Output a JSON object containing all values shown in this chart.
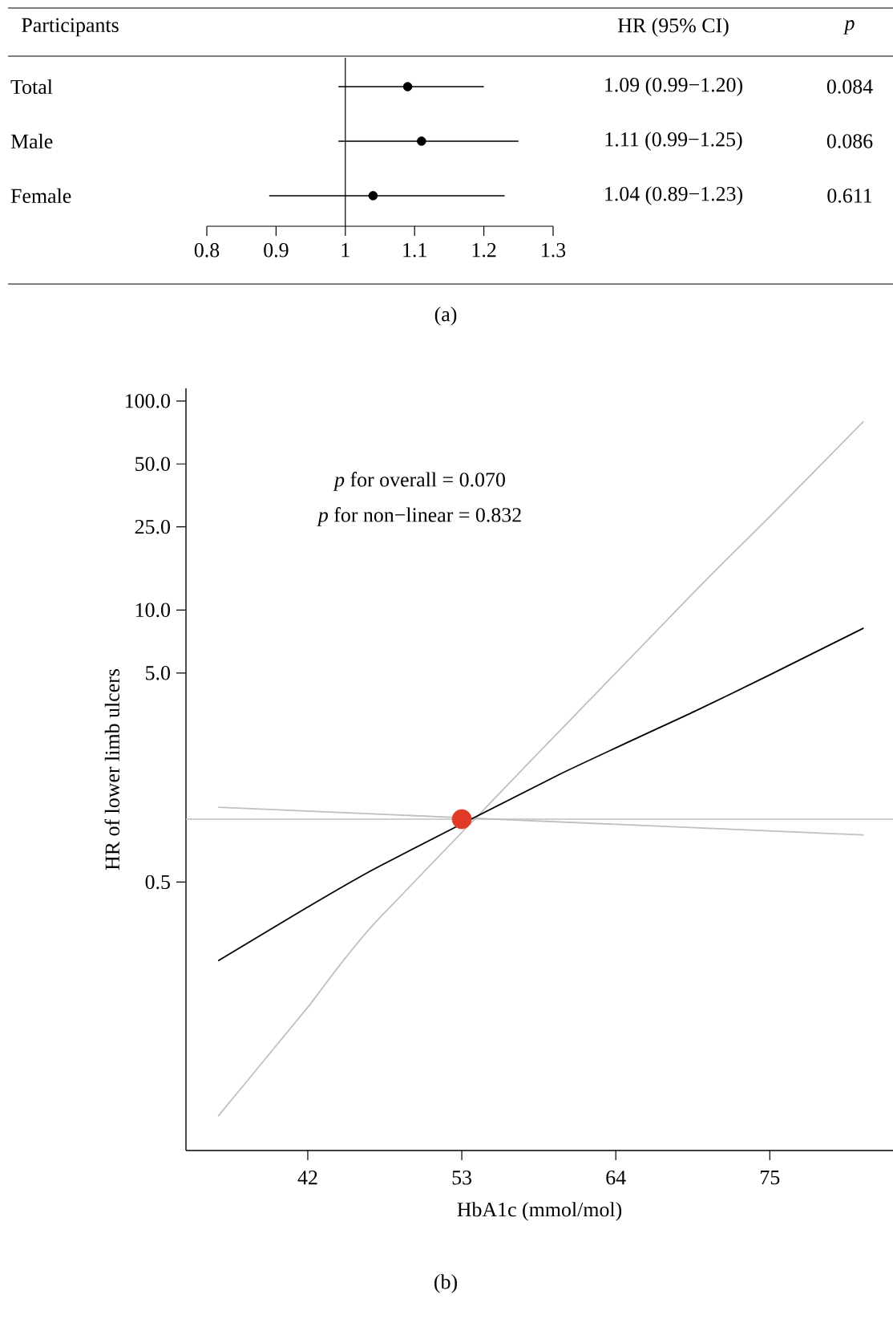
{
  "chart_data": [
    {
      "type": "scatter",
      "orientation": "horizontal",
      "ylabel": "Participants",
      "categories": [
        "Total",
        "Male",
        "Female"
      ],
      "values": [
        1.09,
        1.11,
        1.04
      ],
      "errors": [
        [
          0.99,
          1.2
        ],
        [
          0.99,
          1.25
        ],
        [
          0.89,
          1.23
        ]
      ],
      "color": "#000000",
      "marker": "circle",
      "value_labels": [
        "1.09 (0.99−1.20)",
        "1.11 (0.99−1.25)",
        "1.04 (0.89−1.23)"
      ],
      "xlim": [
        0.8,
        1.3
      ],
      "xticks": [
        0.8,
        0.9,
        1,
        1.1,
        1.2,
        1.3
      ],
      "ref_lines": [
        {
          "axis": "x",
          "value": 1,
          "color": "#000000"
        }
      ],
      "annotations": [
        "HR (95% CI)",
        "*p*",
        "0.084",
        "0.086",
        "0.611",
        "(a)"
      ]
    },
    {
      "type": "line",
      "xlabel": "HbA1c (mmol/mol)",
      "ylabel": "HR of lower limb ulcers",
      "log": "y",
      "xlim": [
        33.3,
        83.8
      ],
      "ylim": [
        0.026,
        115
      ],
      "xticks": [
        42,
        53,
        64,
        75
      ],
      "yticks": [
        0.5,
        {
          "value": 5,
          "label": "5.0"
        },
        {
          "value": 10,
          "label": "10.0"
        },
        {
          "value": 25,
          "label": "25.0"
        },
        {
          "value": 50,
          "label": "50.0"
        },
        {
          "value": 100,
          "label": "100.0"
        }
      ],
      "ref_lines": [
        {
          "axis": "y",
          "value": 1,
          "color": "#c0c0c0"
        }
      ],
      "series": [
        {
          "color": "#c0c0c0",
          "x": [
            35.6,
            81.7
          ],
          "values": [
            1.14,
            0.84
          ]
        },
        {
          "color": "#c0c0c0",
          "x": [
            35.6,
            42,
            47,
            69.6,
            75,
            81.7
          ],
          "values": [
            0.038,
            0.126,
            0.33,
            12.2,
            28,
            80
          ]
        },
        {
          "color": "#000000",
          "x": [
            35.6,
            42,
            47,
            60,
            69.6,
            75,
            81.7
          ],
          "values": [
            0.21,
            0.38,
            0.59,
            1.64,
            3.27,
            4.9,
            8.2
          ]
        },
        {
          "type": "scatter",
          "color": "#e03a26",
          "x": [
            53
          ],
          "values": [
            1.0
          ]
        }
      ],
      "annotations": [
        "*p* for overall = 0.070",
        "*p* for non−linear = 0.832",
        "(b)"
      ]
    }
  ]
}
